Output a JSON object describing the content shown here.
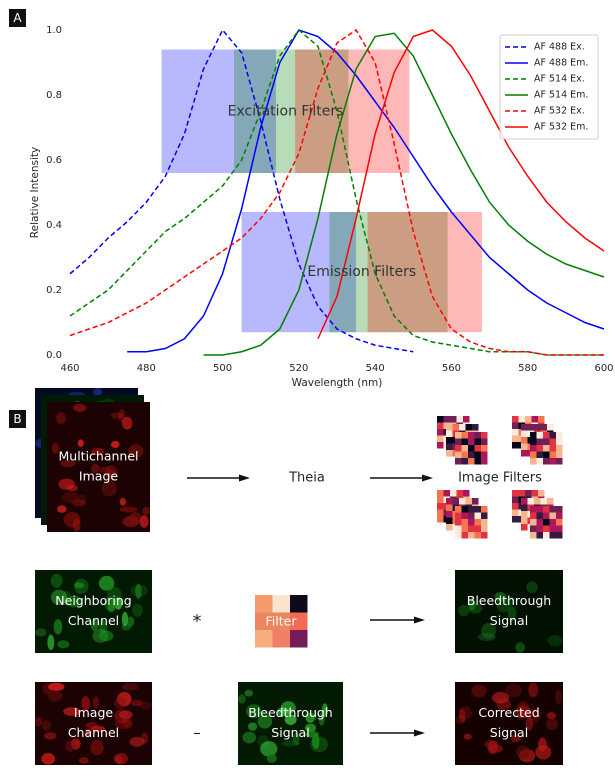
{
  "panel_labels": [
    "A",
    "B"
  ],
  "chart_data": {
    "type": "line",
    "xlabel": "Wavelength (nm)",
    "ylabel": "Relative Intensity",
    "x": [
      460,
      465,
      470,
      475,
      480,
      485,
      490,
      495,
      500,
      505,
      510,
      515,
      520,
      525,
      530,
      535,
      540,
      545,
      550,
      555,
      560,
      565,
      570,
      575,
      580,
      585,
      590,
      595,
      600
    ],
    "xlim": [
      460,
      600
    ],
    "ylim": [
      0,
      1
    ],
    "xticks": [
      460,
      480,
      500,
      520,
      540,
      560,
      580,
      600
    ],
    "yticks": [
      {
        "value": 0,
        "label": "0.0"
      },
      0.2,
      0.4,
      0.6,
      0.8,
      {
        "value": 1,
        "label": "1.0"
      }
    ],
    "legend": "upper right",
    "series": [
      {
        "name": "AF 488 Ex.",
        "color": "#0000ff",
        "dashed": true,
        "values": [
          0.25,
          0.3,
          0.36,
          0.41,
          0.47,
          0.55,
          0.68,
          0.88,
          1.0,
          0.93,
          0.72,
          0.48,
          0.28,
          0.15,
          0.08,
          0.05,
          0.03,
          0.02,
          0.01,
          null,
          null,
          null,
          null,
          null,
          null,
          null,
          null,
          null,
          null
        ]
      },
      {
        "name": "AF 488 Em.",
        "color": "#0000ff",
        "dashed": false,
        "values": [
          null,
          null,
          null,
          0.01,
          0.01,
          0.02,
          0.05,
          0.12,
          0.25,
          0.45,
          0.7,
          0.9,
          1.0,
          0.98,
          0.93,
          0.86,
          0.78,
          0.7,
          0.61,
          0.52,
          0.44,
          0.37,
          0.3,
          0.25,
          0.2,
          0.16,
          0.13,
          0.1,
          0.08
        ]
      },
      {
        "name": "AF 514 Ex.",
        "color": "#008000",
        "dashed": true,
        "values": [
          0.12,
          0.16,
          0.2,
          0.26,
          0.32,
          0.38,
          0.42,
          0.47,
          0.52,
          0.6,
          0.75,
          0.92,
          1.0,
          0.95,
          0.75,
          0.48,
          0.25,
          0.12,
          0.06,
          0.04,
          0.03,
          0.02,
          0.01,
          0.01,
          0.01,
          0,
          0,
          0,
          0
        ]
      },
      {
        "name": "AF 514 Em.",
        "color": "#008000",
        "dashed": false,
        "values": [
          null,
          null,
          null,
          null,
          null,
          null,
          null,
          0,
          0,
          0.01,
          0.03,
          0.08,
          0.2,
          0.42,
          0.68,
          0.88,
          0.98,
          0.99,
          0.92,
          0.8,
          0.68,
          0.57,
          0.47,
          0.4,
          0.35,
          0.31,
          0.28,
          0.26,
          0.24
        ]
      },
      {
        "name": "AF 532 Ex.",
        "color": "#ff0000",
        "dashed": true,
        "values": [
          0.06,
          0.08,
          0.1,
          0.13,
          0.16,
          0.2,
          0.24,
          0.28,
          0.32,
          0.36,
          0.42,
          0.5,
          0.62,
          0.82,
          0.96,
          1.0,
          0.9,
          0.65,
          0.38,
          0.18,
          0.08,
          0.04,
          0.02,
          0.01,
          0.01,
          0,
          0,
          0,
          0
        ]
      },
      {
        "name": "AF 532 Em.",
        "color": "#ff0000",
        "dashed": false,
        "values": [
          null,
          null,
          null,
          null,
          null,
          null,
          null,
          null,
          null,
          null,
          null,
          null,
          null,
          0.05,
          0.18,
          0.42,
          0.68,
          0.87,
          0.98,
          1.0,
          0.95,
          0.86,
          0.75,
          0.64,
          0.55,
          0.47,
          0.41,
          0.36,
          0.32
        ]
      }
    ],
    "filter_groups": [
      {
        "label": "Excitation Filters",
        "y": [
          0.56,
          0.94
        ],
        "bands": [
          {
            "color": "#0000ff",
            "x": [
              484,
              514
            ]
          },
          {
            "color": "#008000",
            "x": [
              503,
              533
            ]
          },
          {
            "color": "#ff0000",
            "x": [
              519,
              549
            ]
          }
        ]
      },
      {
        "label": "Emission Filters",
        "y": [
          0.07,
          0.44
        ],
        "bands": [
          {
            "color": "#0000ff",
            "x": [
              505,
              535
            ]
          },
          {
            "color": "#008000",
            "x": [
              528,
              559
            ]
          },
          {
            "color": "#ff0000",
            "x": [
              538,
              568
            ]
          }
        ]
      }
    ]
  },
  "diagram": {
    "row1": {
      "input": [
        "Multichannel",
        "Image"
      ],
      "method": "Theia",
      "output": "Image Filters"
    },
    "row2": {
      "input": [
        "Neighboring",
        "Channel"
      ],
      "operator": "*",
      "kernel": "Filter",
      "output": [
        "Bleedthrough",
        "Signal"
      ]
    },
    "row3": {
      "input": [
        "Image",
        "Channel"
      ],
      "operator": "–",
      "subtrahend": [
        "Bleedthrough",
        "Signal"
      ],
      "output": [
        "Corrected",
        "Signal"
      ]
    }
  }
}
